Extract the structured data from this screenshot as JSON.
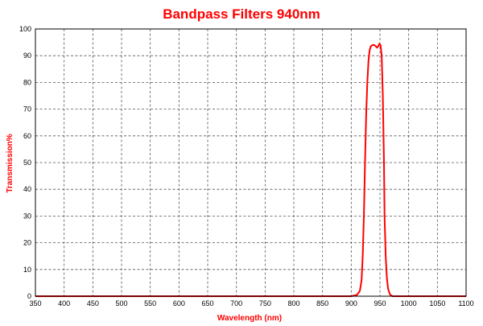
{
  "chart_data": {
    "type": "line",
    "title": "Bandpass Filters 940nm",
    "xlabel": "Wavelength (nm)",
    "ylabel": "Transmission%",
    "xlim": [
      350,
      1100
    ],
    "ylim": [
      0,
      100
    ],
    "x_ticks": [
      350,
      400,
      450,
      500,
      550,
      600,
      650,
      700,
      750,
      800,
      850,
      900,
      950,
      1000,
      1050,
      1100
    ],
    "y_ticks": [
      0,
      10,
      20,
      30,
      40,
      50,
      60,
      70,
      80,
      90,
      100
    ],
    "grid": true,
    "legend": "none",
    "series": [
      {
        "color": "#ff0000",
        "x": [
          350,
          900,
          910,
          915,
          918,
          920,
          922,
          924,
          926,
          928,
          930,
          932,
          934,
          937,
          940,
          943,
          945,
          947,
          949,
          951,
          953,
          955,
          957,
          958,
          960,
          962,
          964,
          966,
          968,
          972,
          980,
          1100
        ],
        "y": [
          0,
          0,
          0.5,
          2,
          6,
          15,
          30,
          50,
          68,
          80,
          88,
          92,
          93.5,
          94,
          94,
          93.5,
          93,
          93.5,
          94.5,
          94,
          90,
          75,
          50,
          30,
          15,
          7,
          3,
          1.5,
          0.5,
          0,
          0,
          0
        ]
      }
    ]
  }
}
